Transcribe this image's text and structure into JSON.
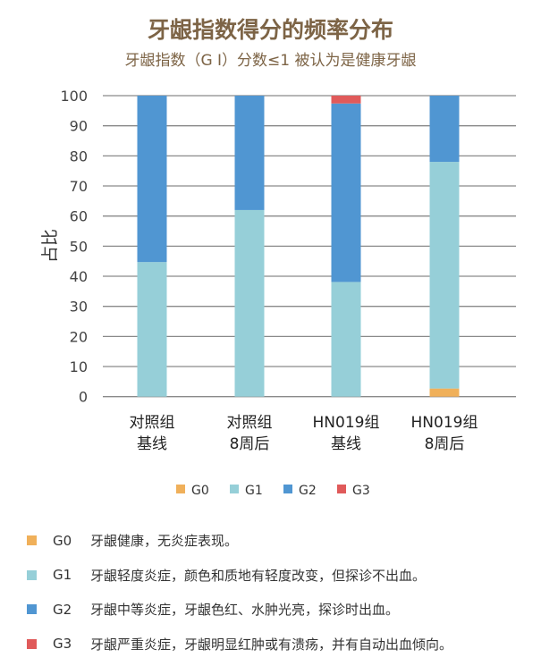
{
  "chart_data": {
    "type": "bar",
    "stacked": true,
    "title": "牙龈指数得分的频率分布",
    "subtitle": "牙龈指数（G I）分数≤1  被认为是健康牙龈",
    "xlabel": "",
    "ylabel": "占比",
    "ylim": [
      0,
      100
    ],
    "yticks": [
      0,
      10,
      20,
      30,
      40,
      50,
      60,
      70,
      80,
      90,
      100
    ],
    "grid": true,
    "legend_placement": "bottom",
    "categories": [
      [
        "对照组",
        "基线"
      ],
      [
        "对照组",
        "8周后"
      ],
      [
        "HN019组",
        "基线"
      ],
      [
        "HN019组",
        "8周后"
      ]
    ],
    "series": [
      {
        "name": "G0",
        "color": "#f0b05a",
        "values": [
          0,
          0,
          0,
          2.7
        ]
      },
      {
        "name": "G1",
        "color": "#96cfd8",
        "values": [
          44.7,
          62.0,
          38.1,
          75.3
        ]
      },
      {
        "name": "G2",
        "color": "#5096d2",
        "values": [
          55.3,
          38.0,
          59.3,
          22.0
        ]
      },
      {
        "name": "G3",
        "color": "#e05a5a",
        "values": [
          0,
          0,
          2.6,
          0
        ]
      }
    ]
  },
  "descriptions": [
    {
      "code": "G0",
      "text": "牙龈健康，无炎症表现。"
    },
    {
      "code": "G1",
      "text": "牙龈轻度炎症，颜色和质地有轻度改变，但探诊不出血。"
    },
    {
      "code": "G2",
      "text": "牙龈中等炎症，牙龈色红、水肿光亮，探诊时出血。"
    },
    {
      "code": "G3",
      "text": "牙龈严重炎症，牙龈明显红肿或有溃疡，并有自动出血倾向。"
    }
  ]
}
